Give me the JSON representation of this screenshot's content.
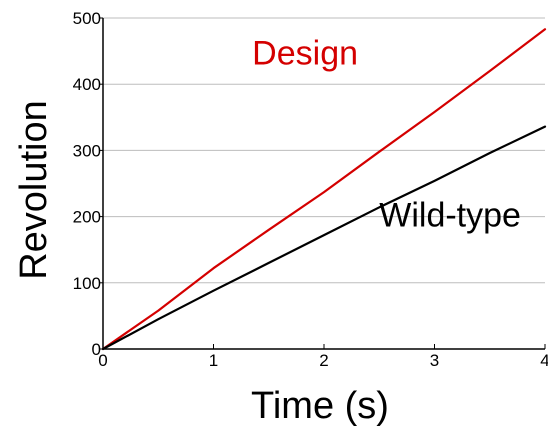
{
  "chart_data": {
    "type": "line",
    "title": "",
    "xlabel": "Time (s)",
    "ylabel": "Revolution",
    "xlim": [
      0,
      4
    ],
    "ylim": [
      0,
      500
    ],
    "x_ticks": [
      0,
      1,
      2,
      3,
      4
    ],
    "y_ticks": [
      0,
      100,
      200,
      300,
      400,
      500
    ],
    "x_tick_labels": [
      "0",
      "1",
      "2",
      "3",
      "4"
    ],
    "y_tick_labels": [
      "0",
      "100",
      "200",
      "300",
      "400",
      "500"
    ],
    "grid": "horizontal",
    "legend": "none",
    "series": [
      {
        "name": "Design",
        "color": "#d40000",
        "x": [
          0,
          0.5,
          1.0,
          1.5,
          2.0,
          2.5,
          3.0,
          3.5,
          4.0
        ],
        "y": [
          0,
          58,
          122,
          180,
          237,
          298,
          358,
          420,
          483
        ]
      },
      {
        "name": "Wild-type",
        "color": "#000000",
        "x": [
          0,
          0.5,
          1.0,
          1.5,
          2.0,
          2.5,
          3.0,
          3.5,
          4.0
        ],
        "y": [
          0,
          45,
          88,
          130,
          172,
          214,
          254,
          296,
          336
        ]
      }
    ],
    "annotations": [
      {
        "text": "Design",
        "color": "#d40000",
        "x": 1.35,
        "y": 430
      },
      {
        "text": "Wild-type",
        "color": "#000000",
        "x": 2.5,
        "y": 185
      }
    ]
  }
}
